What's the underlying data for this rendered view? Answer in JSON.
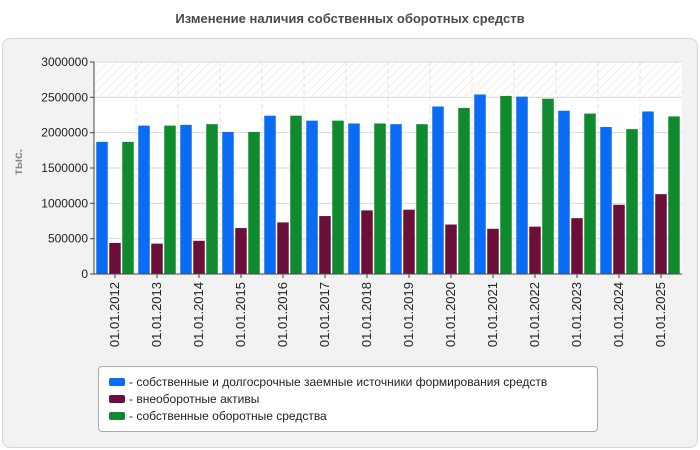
{
  "chart_data": {
    "type": "bar",
    "title": "Изменение наличия собственных оборотных средств",
    "xlabel": "",
    "ylabel": "тыс.",
    "ylim": [
      0,
      3000000
    ],
    "yticks": [
      0,
      500000,
      1000000,
      1500000,
      2000000,
      2500000,
      3000000
    ],
    "categories": [
      "01.01.2012",
      "01.01.2013",
      "01.01.2014",
      "01.01.2015",
      "01.01.2016",
      "01.01.2017",
      "01.01.2018",
      "01.01.2019",
      "01.01.2020",
      "01.01.2021",
      "01.01.2022",
      "01.01.2023",
      "01.01.2024",
      "01.01.2025"
    ],
    "series": [
      {
        "name": "- собственные и долгосрочные заемные источники формирования средств",
        "color": "#0a6cf5",
        "values": [
          1870000,
          2100000,
          2110000,
          2010000,
          2240000,
          2170000,
          2130000,
          2120000,
          2370000,
          2540000,
          2510000,
          2310000,
          2080000,
          2300000
        ]
      },
      {
        "name": "- внеоборотные активы",
        "color": "#6b0f3a",
        "values": [
          440000,
          430000,
          470000,
          650000,
          730000,
          820000,
          900000,
          910000,
          700000,
          640000,
          670000,
          790000,
          980000,
          1130000
        ]
      },
      {
        "name": "- собственные оборотные средства",
        "color": "#0f8a2f",
        "values": [
          1870000,
          2100000,
          2120000,
          2010000,
          2240000,
          2170000,
          2130000,
          2120000,
          2350000,
          2520000,
          2480000,
          2270000,
          2050000,
          2230000
        ]
      }
    ],
    "grid": true,
    "legend_position": "bottom"
  }
}
